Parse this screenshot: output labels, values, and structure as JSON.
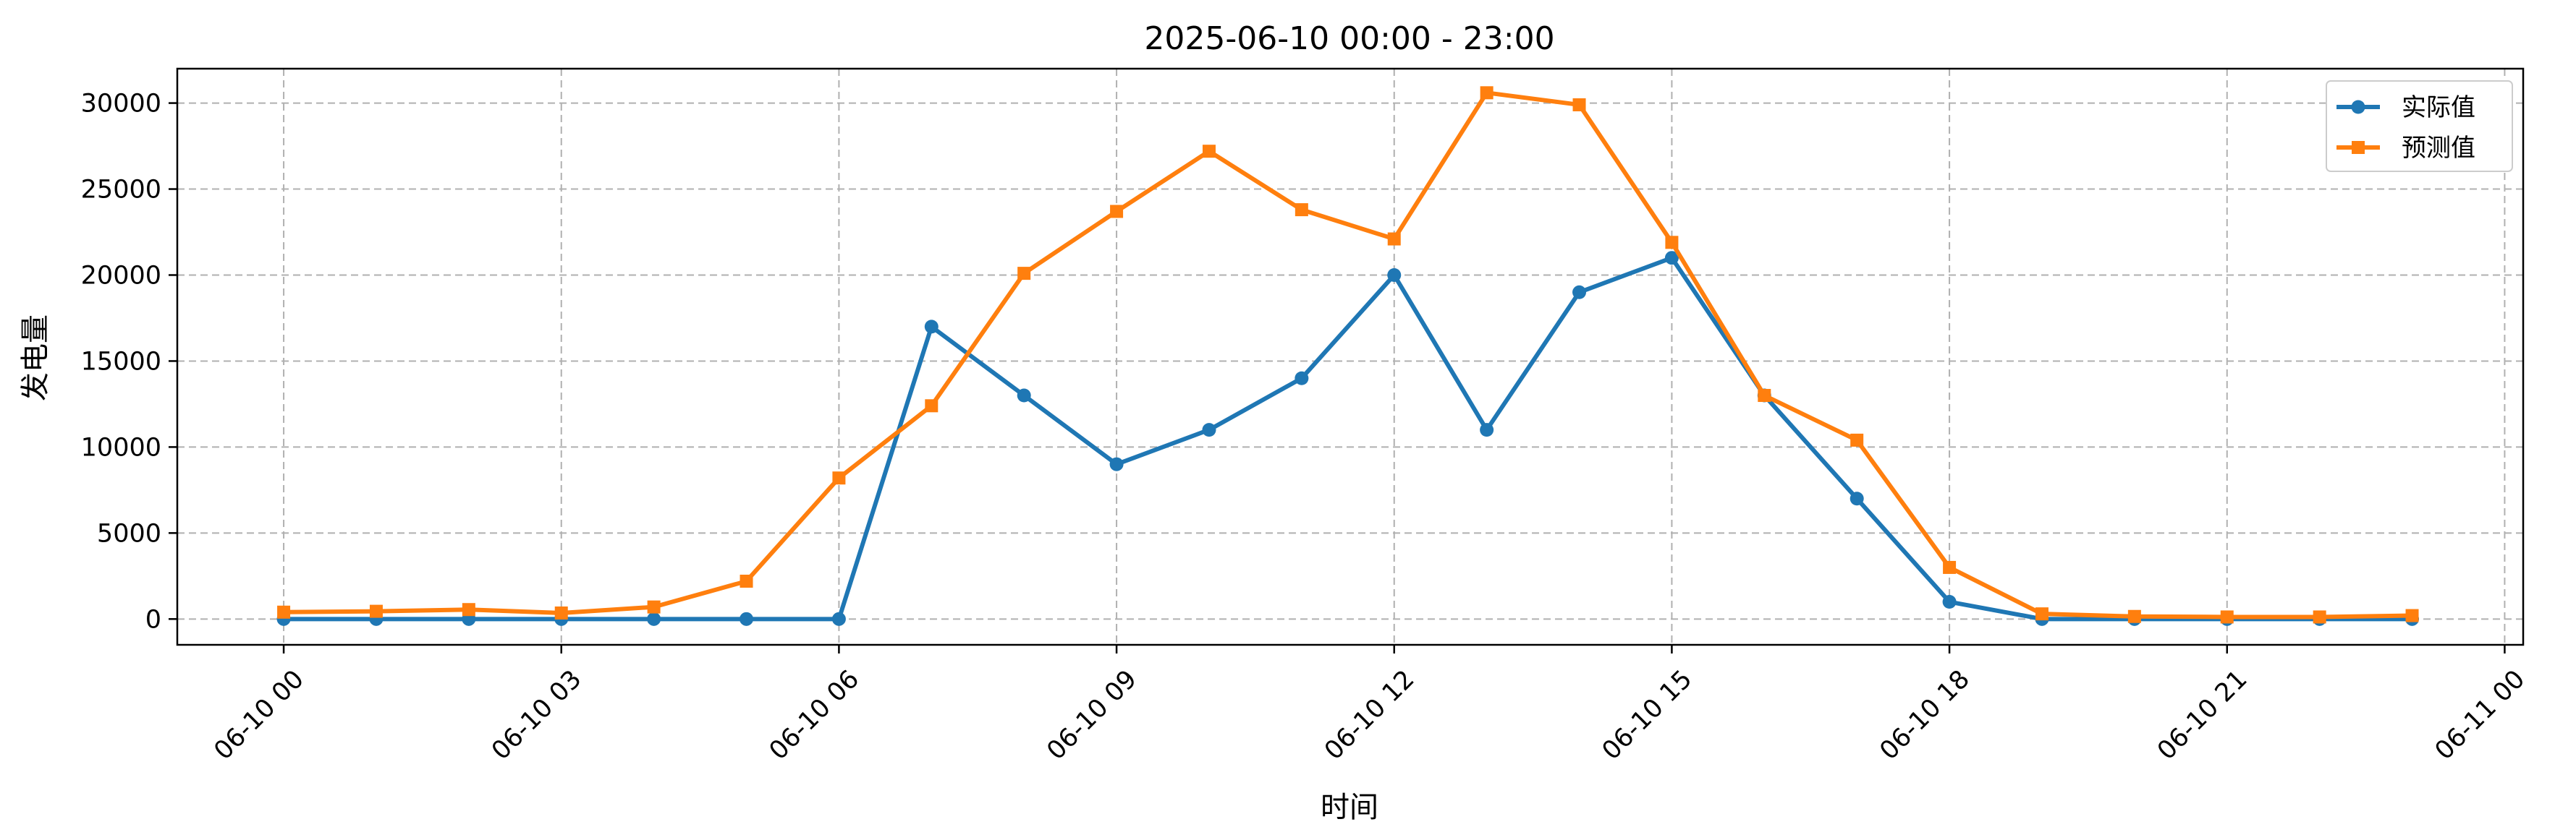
{
  "chart_data": {
    "type": "line",
    "title": "2025-06-10 00:00 - 23:00",
    "xlabel": "时间",
    "ylabel": "发电量",
    "x": [
      "06-10 00",
      "06-10 01",
      "06-10 02",
      "06-10 03",
      "06-10 04",
      "06-10 05",
      "06-10 06",
      "06-10 07",
      "06-10 08",
      "06-10 09",
      "06-10 10",
      "06-10 11",
      "06-10 12",
      "06-10 13",
      "06-10 14",
      "06-10 15",
      "06-10 16",
      "06-10 17",
      "06-10 18",
      "06-10 19",
      "06-10 20",
      "06-10 21",
      "06-10 22",
      "06-10 23"
    ],
    "x_ticks": [
      "06-10 00",
      "06-10 03",
      "06-10 06",
      "06-10 09",
      "06-10 12",
      "06-10 15",
      "06-10 18",
      "06-10 21",
      "06-11 00"
    ],
    "y_ticks": [
      "0",
      "5000",
      "10000",
      "15000",
      "20000",
      "25000",
      "30000"
    ],
    "ylim": [
      -1500,
      32000
    ],
    "grid": true,
    "legend_position": "top-right",
    "series": [
      {
        "name": "实际值",
        "color": "#1f77b4",
        "marker": "circle",
        "values": [
          0,
          0,
          0,
          0,
          0,
          0,
          0,
          17000,
          13000,
          9000,
          11000,
          14000,
          20000,
          11000,
          19000,
          21000,
          13000,
          7000,
          1000,
          0,
          0,
          0,
          0,
          0
        ]
      },
      {
        "name": "预测值",
        "color": "#ff7f0e",
        "marker": "square",
        "values": [
          400,
          450,
          550,
          350,
          700,
          2200,
          8200,
          12400,
          20100,
          23700,
          27200,
          23800,
          22100,
          30600,
          29900,
          21900,
          13000,
          10400,
          3000,
          300,
          150,
          120,
          120,
          200
        ]
      }
    ]
  }
}
